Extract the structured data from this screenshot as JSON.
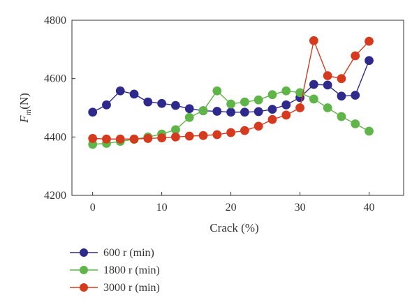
{
  "chart_data": {
    "type": "line",
    "title": "",
    "xlabel": "Crack (%)",
    "ylabel_main": "F",
    "ylabel_sub": "m",
    "ylabel_unit": "(N)",
    "xlim": [
      -3,
      45
    ],
    "ylim": [
      4200,
      4800
    ],
    "xticks": [
      0,
      10,
      20,
      30,
      40
    ],
    "yticks": [
      4200,
      4400,
      4600,
      4800
    ],
    "grid": false,
    "legend_position": "bottom-left-outside",
    "x": [
      0,
      2,
      4,
      6,
      8,
      10,
      12,
      14,
      16,
      18,
      20,
      22,
      24,
      26,
      28,
      30,
      32,
      34,
      36,
      38,
      40
    ],
    "series": [
      {
        "name": "600 r (min)",
        "color": "#2e2a8c",
        "values": [
          4485,
          4510,
          4558,
          4547,
          4520,
          4515,
          4508,
          4497,
          4490,
          4488,
          4485,
          4485,
          4487,
          4495,
          4510,
          4535,
          4580,
          4578,
          4540,
          4543,
          4662
        ]
      },
      {
        "name": "1800 r (min)",
        "color": "#5fb548",
        "values": [
          4375,
          4378,
          4385,
          4392,
          4400,
          4410,
          4425,
          4467,
          4490,
          4558,
          4513,
          4520,
          4527,
          4545,
          4558,
          4552,
          4530,
          4500,
          4470,
          4445,
          4420
        ]
      },
      {
        "name": "3000 r (min)",
        "color": "#d63a1e",
        "values": [
          4395,
          4393,
          4393,
          4393,
          4395,
          4397,
          4400,
          4403,
          4405,
          4408,
          4415,
          4422,
          4437,
          4460,
          4475,
          4500,
          4730,
          4610,
          4600,
          4678,
          4728
        ]
      }
    ]
  }
}
